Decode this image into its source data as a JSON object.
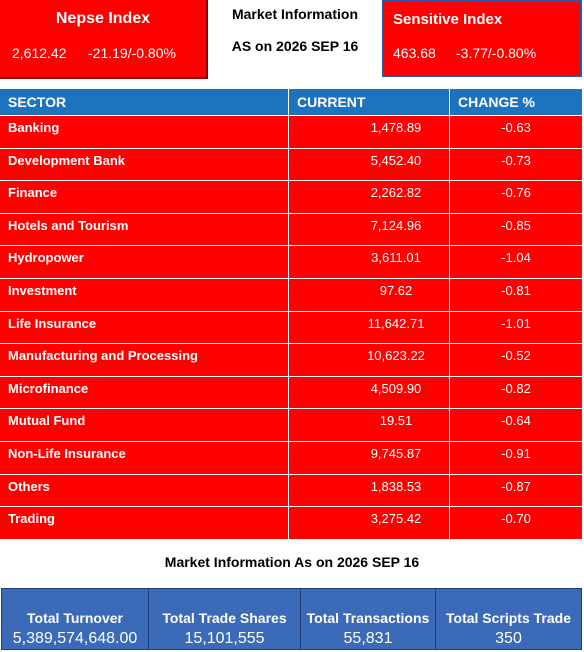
{
  "nepse_index": {
    "title": "Nepse Index",
    "value": "2,612.42",
    "change": "-21.19/-0.80%"
  },
  "market_info": {
    "title": "Market Information",
    "date": "AS on 2026 SEP 16"
  },
  "sensitive_index": {
    "title": "Sensitive Index",
    "value": "463.68",
    "change": "-3.77/-0.80%"
  },
  "table": {
    "headers": [
      "SECTOR",
      "CURRENT",
      "CHANGE %"
    ],
    "rows": [
      [
        "Banking",
        "1,478.89",
        "-0.63"
      ],
      [
        "Development Bank",
        "5,452.40",
        "-0.73"
      ],
      [
        "Finance",
        "2,262.82",
        "-0.76"
      ],
      [
        "Hotels and Tourism",
        "7,124.96",
        "-0.85"
      ],
      [
        "Hydropower",
        "3,611.01",
        "-1.04"
      ],
      [
        "Investment",
        "97.62",
        "-0.81"
      ],
      [
        "Life Insurance",
        "11,642.71",
        "-1.01"
      ],
      [
        "Manufacturing and Processing",
        "10,623.22",
        "-0.52"
      ],
      [
        "Microfinance",
        "4,509.90",
        "-0.82"
      ],
      [
        "Mutual Fund",
        "19.51",
        "-0.64"
      ],
      [
        "Non-Life Insurance",
        "9,745.87",
        "-0.91"
      ],
      [
        "Others",
        "1,838.53",
        "-0.87"
      ],
      [
        "Trading",
        "3,275.42",
        "-0.70"
      ]
    ]
  },
  "summary": {
    "title": "Market Information As on 2026 SEP 16",
    "items": [
      {
        "label": "Total Turnover",
        "value": "5,389,574,648.00"
      },
      {
        "label": "Total Trade Shares",
        "value": "15,101,555"
      },
      {
        "label": "Total Transactions",
        "value": "55,831"
      },
      {
        "label": "Total Scripts Trade",
        "value": "350"
      }
    ]
  }
}
